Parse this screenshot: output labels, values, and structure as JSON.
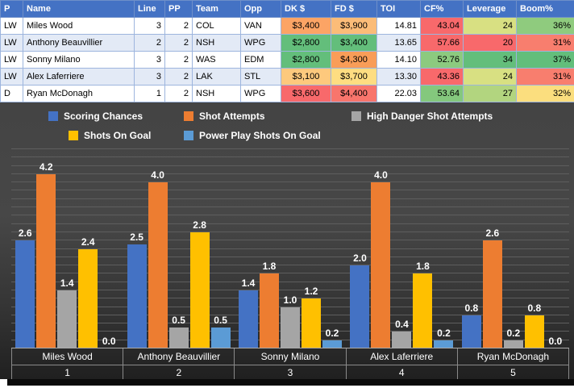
{
  "table": {
    "headers": [
      "P",
      "Name",
      "Line",
      "PP",
      "Team",
      "Opp",
      "DK $",
      "FD $",
      "TOI",
      "CF%",
      "Leverage",
      "Boom%"
    ],
    "rows": [
      {
        "cells": [
          {
            "text": "LW"
          },
          {
            "text": "Miles Wood"
          },
          {
            "text": "3"
          },
          {
            "text": "2"
          },
          {
            "text": "COL"
          },
          {
            "text": "VAN"
          },
          {
            "text": "$3,400",
            "bg": "#FCA465"
          },
          {
            "text": "$3,900",
            "bg": "#FBBC78"
          },
          {
            "text": "14.81"
          },
          {
            "text": "43.04",
            "bg": "#F8696B"
          },
          {
            "text": "24",
            "bg": "#D8E082"
          },
          {
            "text": "36%",
            "bg": "#8FCB7E"
          }
        ]
      },
      {
        "cells": [
          {
            "text": "LW"
          },
          {
            "text": "Anthony Beauvillier"
          },
          {
            "text": "2"
          },
          {
            "text": "2"
          },
          {
            "text": "NSH"
          },
          {
            "text": "WPG"
          },
          {
            "text": "$2,800",
            "bg": "#63BE7B"
          },
          {
            "text": "$3,400",
            "bg": "#63BE7B"
          },
          {
            "text": "13.65"
          },
          {
            "text": "57.66",
            "bg": "#F8696B"
          },
          {
            "text": "20",
            "bg": "#F8696B"
          },
          {
            "text": "31%",
            "bg": "#F87E6E"
          }
        ]
      },
      {
        "cells": [
          {
            "text": "LW"
          },
          {
            "text": "Sonny Milano"
          },
          {
            "text": "3"
          },
          {
            "text": "2"
          },
          {
            "text": "WAS"
          },
          {
            "text": "EDM"
          },
          {
            "text": "$2,800",
            "bg": "#63BE7B"
          },
          {
            "text": "$4,300",
            "bg": "#F99D58"
          },
          {
            "text": "14.10"
          },
          {
            "text": "52.76",
            "bg": "#8CCA7F"
          },
          {
            "text": "34",
            "bg": "#63BE7B"
          },
          {
            "text": "37%",
            "bg": "#63BE7B"
          }
        ]
      },
      {
        "cells": [
          {
            "text": "LW"
          },
          {
            "text": "Alex Laferriere"
          },
          {
            "text": "3"
          },
          {
            "text": "2"
          },
          {
            "text": "LAK"
          },
          {
            "text": "STL"
          },
          {
            "text": "$3,100",
            "bg": "#FDC97D"
          },
          {
            "text": "$3,700",
            "bg": "#FEDD81"
          },
          {
            "text": "13.30"
          },
          {
            "text": "43.36",
            "bg": "#F8696B"
          },
          {
            "text": "24",
            "bg": "#D8E082"
          },
          {
            "text": "31%",
            "bg": "#F87E6E"
          }
        ]
      },
      {
        "cells": [
          {
            "text": "D"
          },
          {
            "text": "Ryan McDonagh"
          },
          {
            "text": "1"
          },
          {
            "text": "2"
          },
          {
            "text": "NSH"
          },
          {
            "text": "WPG"
          },
          {
            "text": "$3,600",
            "bg": "#F8696B"
          },
          {
            "text": "$4,400",
            "bg": "#F8756C"
          },
          {
            "text": "22.03"
          },
          {
            "text": "53.64",
            "bg": "#84C87D"
          },
          {
            "text": "27",
            "bg": "#B2D57F"
          },
          {
            "text": "32%",
            "bg": "#FBDE7E"
          }
        ]
      }
    ]
  },
  "chart_data": {
    "type": "bar",
    "categories": [
      "Miles Wood",
      "Anthony Beauvillier",
      "Sonny Milano",
      "Alex Laferriere",
      "Ryan McDonagh"
    ],
    "category_numbers": [
      "1",
      "2",
      "3",
      "4",
      "5"
    ],
    "series": [
      {
        "name": "Scoring Chances",
        "color": "#4472C4",
        "values": [
          2.6,
          2.5,
          1.4,
          2.0,
          0.8
        ]
      },
      {
        "name": "Shot Attempts",
        "color": "#ED7D31",
        "values": [
          4.2,
          4.0,
          1.8,
          4.0,
          2.6
        ]
      },
      {
        "name": "High Danger Shot Attempts",
        "color": "#A5A5A5",
        "values": [
          1.4,
          0.5,
          1.0,
          0.4,
          0.2
        ]
      },
      {
        "name": "Shots On Goal",
        "color": "#FFC000",
        "values": [
          2.4,
          2.8,
          1.2,
          1.8,
          0.8
        ]
      },
      {
        "name": "Power Play Shots On Goal",
        "color": "#5B9BD5",
        "values": [
          0.0,
          0.5,
          0.2,
          0.2,
          0.0
        ]
      }
    ],
    "ylim": [
      0,
      4.8
    ],
    "gridline_step": 0.2,
    "legend_position": "top",
    "value_label_decimals": 1
  },
  "colors": {
    "header_bg": "#4472C4",
    "band_bg": "#E3EAF6",
    "chart_bg_top": "#474747",
    "chart_bg_bottom": "#1E1E1E"
  }
}
